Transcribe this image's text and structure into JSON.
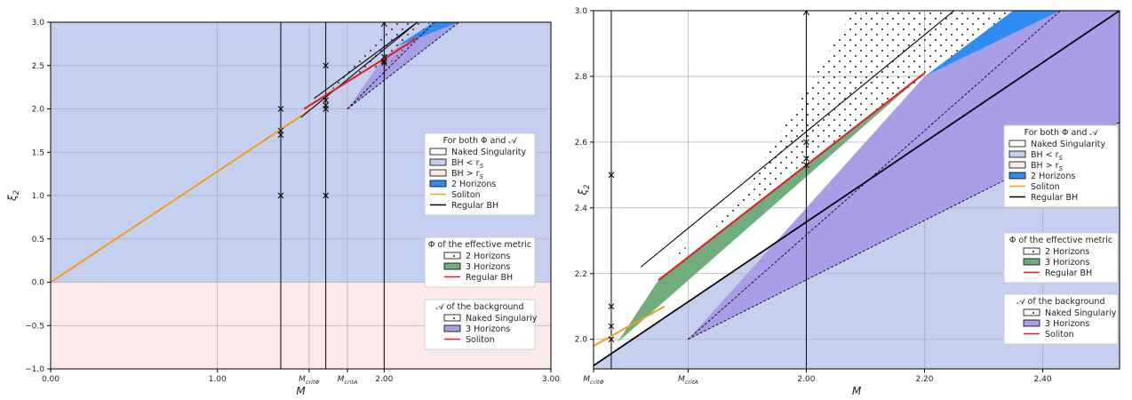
{
  "chart_data": [
    {
      "type": "area",
      "xlabel": "M",
      "ylabel": "ξ_2",
      "xlim": [
        0,
        3
      ],
      "ylim": [
        -1,
        3
      ],
      "xticks": [
        "0.00",
        "1.00",
        "2.00",
        "3.00"
      ],
      "yticks": [
        "−1.0",
        "−0.5",
        "0.0",
        "0.5",
        "1.0",
        "1.5",
        "2.0",
        "2.5",
        "3.0"
      ],
      "special_xticks": [
        {
          "label": "M_critΦ",
          "x": 1.55
        },
        {
          "label": "M_critA",
          "x": 1.78
        }
      ],
      "grid": true,
      "regions": {
        "bh_below_rs": {
          "y_range": [
            0,
            3
          ],
          "color": "#c5d0f1"
        },
        "bh_above_rs": {
          "y_range": [
            -1,
            0
          ],
          "color": "#fce9ea"
        },
        "two_horizons": {
          "polygon": [
            [
              2.07,
              2.72
            ],
            [
              2.3,
              3.0
            ],
            [
              2.45,
              3.0
            ]
          ],
          "color": "#2f8cf2"
        },
        "three_horizons_background": {
          "polygon": [
            [
              1.78,
              2.0
            ],
            [
              2.2,
              2.8
            ],
            [
              2.45,
              3.0
            ],
            [
              2.3,
              3.0
            ]
          ],
          "color": "#a89ee8"
        },
        "naked_singularity_effective": {
          "polygon": [
            [
              1.58,
              2.13
            ],
            [
              2.15,
              3.0
            ],
            [
              2.38,
              3.0
            ],
            [
              2.05,
              2.53
            ]
          ],
          "hatch": "dots"
        }
      },
      "series": [
        {
          "name": "Soliton",
          "color": "#f59a1b",
          "x": [
            0,
            1.55
          ],
          "y": [
            0,
            1.98
          ]
        },
        {
          "name": "Regular BH",
          "color": "#000000",
          "x": [
            1.5,
            2.2
          ],
          "y": [
            1.9,
            3.0
          ]
        },
        {
          "name": "Regular BH (effective)",
          "color": "#e21b1b",
          "x": [
            1.52,
            2.2
          ],
          "y": [
            2.0,
            2.82
          ]
        },
        {
          "name": "Naked singularity boundary",
          "color": "#000000",
          "x": [
            1.58,
            2.2
          ],
          "y": [
            2.12,
            3.0
          ]
        }
      ],
      "vlines": [
        1.38,
        1.65,
        2.0
      ],
      "markers": [
        {
          "x": 1.38,
          "y": 1.7
        },
        {
          "x": 1.38,
          "y": 1.75
        },
        {
          "x": 1.38,
          "y": 2.0
        },
        {
          "x": 1.38,
          "y": 1.0
        },
        {
          "x": 1.65,
          "y": 2.5
        },
        {
          "x": 1.65,
          "y": 2.1
        },
        {
          "x": 1.65,
          "y": 2.04
        },
        {
          "x": 1.65,
          "y": 2.0
        },
        {
          "x": 1.65,
          "y": 1.0
        },
        {
          "x": 2.0,
          "y": 2.6
        },
        {
          "x": 2.0,
          "y": 2.55
        },
        {
          "x": 2.0,
          "y": 2.53
        }
      ]
    },
    {
      "type": "area",
      "xlabel": "M",
      "ylabel": "ξ_2",
      "xlim": [
        1.64,
        2.53
      ],
      "ylim": [
        1.91,
        3.0
      ],
      "xticks": [
        "2.00",
        "2.20",
        "2.40"
      ],
      "yticks": [
        "2.0",
        "2.2",
        "2.4",
        "2.6",
        "2.8",
        "3.0"
      ],
      "special_xticks": [
        {
          "label": "M_critΦ",
          "x": 1.64
        },
        {
          "label": "M_critA",
          "x": 1.8
        }
      ],
      "grid": true,
      "series": [
        {
          "name": "Soliton",
          "color": "#f59a1b",
          "x": [
            1.64,
            1.76
          ],
          "y": [
            1.98,
            2.1
          ]
        },
        {
          "name": "Regular BH",
          "color": "#000000",
          "x": [
            1.64,
            2.53
          ],
          "y": [
            1.92,
            3.0
          ]
        },
        {
          "name": "Regular BH (effective)",
          "color": "#e21b1b",
          "x": [
            1.75,
            2.2
          ],
          "y": [
            2.18,
            2.81
          ]
        },
        {
          "name": "Naked singularity boundary",
          "color": "#000000",
          "x": [
            1.72,
            2.25
          ],
          "y": [
            2.22,
            3.0
          ]
        }
      ],
      "vlines": [
        1.67,
        2.0
      ],
      "markers": [
        {
          "x": 1.67,
          "y": 2.5
        },
        {
          "x": 1.67,
          "y": 2.1
        },
        {
          "x": 1.67,
          "y": 2.04
        },
        {
          "x": 1.67,
          "y": 2.0
        },
        {
          "x": 2.0,
          "y": 2.6
        },
        {
          "x": 2.0,
          "y": 2.55
        },
        {
          "x": 2.0,
          "y": 2.53
        }
      ]
    }
  ],
  "legends": {
    "both": {
      "title": "For both Φ and 𝒜",
      "items": [
        {
          "label": "Naked Singularity",
          "style": "box-white"
        },
        {
          "label": "BH  < r_S",
          "style": "box-blue"
        },
        {
          "label": "BH  > r_S",
          "style": "box-pink"
        },
        {
          "label": "2 Horizons",
          "style": "box-dark-blue"
        },
        {
          "label": "Soliton",
          "style": "line-orange"
        },
        {
          "label": "Regular BH",
          "style": "line-black"
        }
      ]
    },
    "effective": {
      "title": "Φ of the effective metric",
      "items": [
        {
          "label": "2 Horizons",
          "style": "box-dots"
        },
        {
          "label": "3 Horizons",
          "style": "box-green"
        },
        {
          "label": "Regular BH",
          "style": "line-red"
        }
      ]
    },
    "background": {
      "title": "𝒜 of the background",
      "items": [
        {
          "label": "Naked Singulariy",
          "style": "box-dots"
        },
        {
          "label": "3 Horizons",
          "style": "box-purple"
        },
        {
          "label": "Soliton",
          "style": "line-red"
        }
      ]
    }
  },
  "colors": {
    "bh_below": "#c5d0f1",
    "bh_above": "#fce9ea",
    "two_horizons": "#2f8cf2",
    "three_horizons_purple": "#a89ee8",
    "three_horizons_green": "#6fae7c",
    "soliton": "#f59a1b",
    "regular_bh_effective": "#e21b1b"
  }
}
